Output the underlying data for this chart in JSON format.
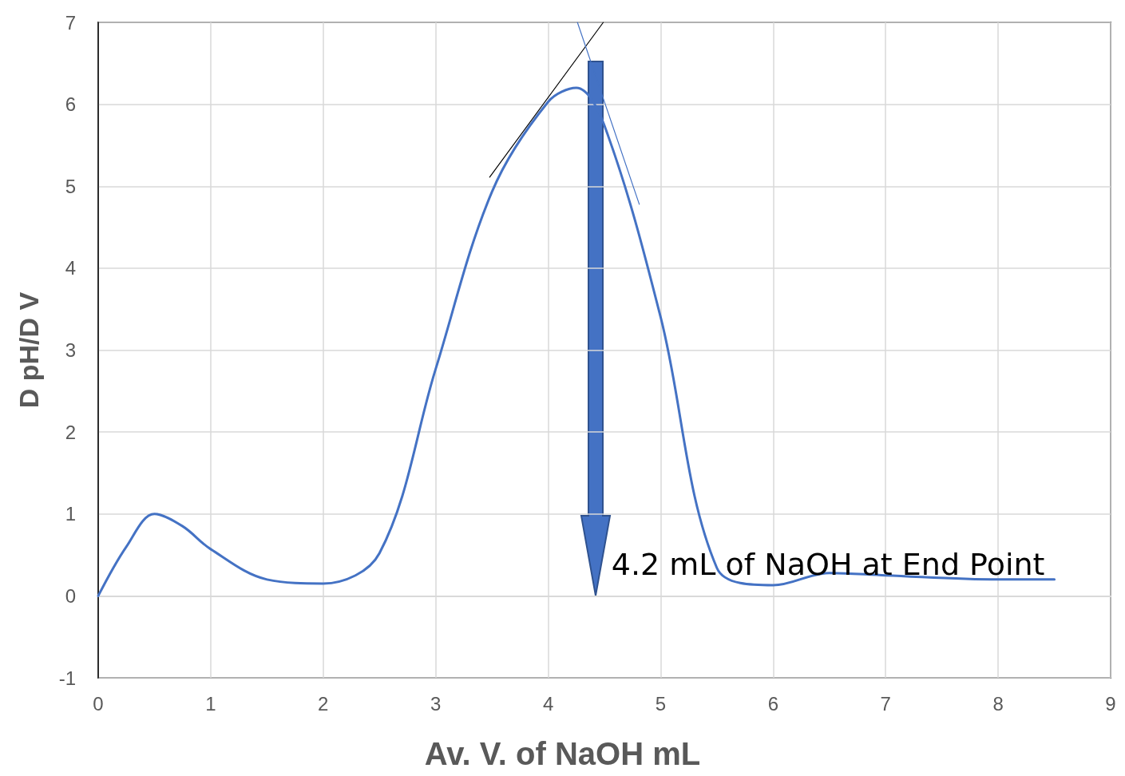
{
  "chart_data": {
    "type": "line",
    "xlabel": "Av. V. of NaOH mL",
    "ylabel": "D pH/D V",
    "x": [
      0,
      0.25,
      0.5,
      0.75,
      1,
      1.5,
      2,
      2.5,
      3,
      3.5,
      4,
      4.25,
      4.5,
      5,
      5.5,
      6,
      6.5,
      7,
      8,
      8.5
    ],
    "series": [
      {
        "color": "#4472c4",
        "values": [
          0,
          0.6,
          1.0,
          0.85,
          0.57,
          0.2,
          0.15,
          0.52,
          2.77,
          4.93,
          6.03,
          6.2,
          5.74,
          3.4,
          0.34,
          0.13,
          0.28,
          0.25,
          0.2,
          0.2
        ]
      },
      {
        "type": "line",
        "color": "#000000",
        "x": [
          3.48,
          4.49
        ],
        "values": [
          5.11,
          7.0
        ]
      },
      {
        "type": "line",
        "color": "#4472c4",
        "x": [
          4.26,
          4.81
        ],
        "values": [
          7.0,
          4.78
        ]
      }
    ],
    "xlim": [
      0,
      9
    ],
    "xticks": [
      0,
      1,
      2,
      3,
      4,
      5,
      6,
      7,
      8,
      9
    ],
    "ylim": [
      -1,
      7
    ],
    "yticks": [
      -1,
      0,
      1,
      2,
      3,
      4,
      5,
      6,
      7
    ],
    "grid": true,
    "marker": "none",
    "line_style": "solid",
    "annotations": [
      "4.2 mL of NaOH at End Point"
    ]
  }
}
